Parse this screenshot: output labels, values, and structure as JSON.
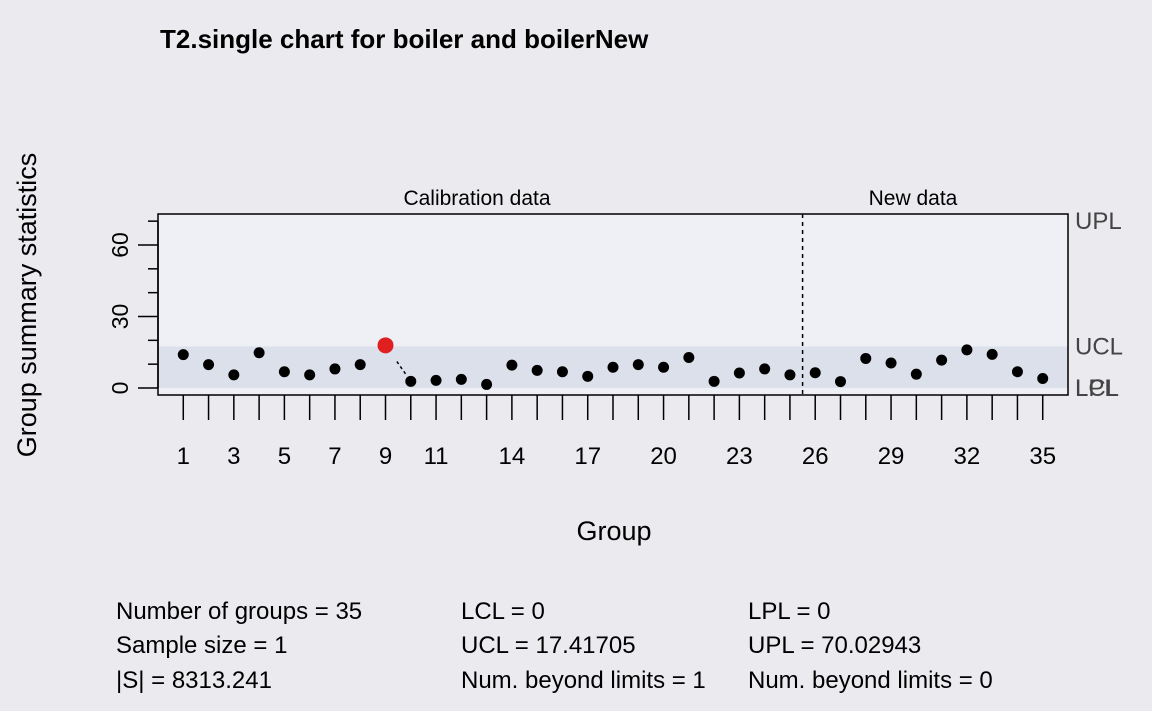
{
  "chart_data": {
    "type": "scatter",
    "title": "T2.single chart for boiler and boilerNew",
    "xlabel": "Group",
    "ylabel": "Group summary statistics",
    "section_labels": [
      "Calibration data",
      "New data"
    ],
    "calibration_groups": 25,
    "x": [
      1,
      2,
      3,
      4,
      5,
      6,
      7,
      8,
      9,
      10,
      11,
      12,
      13,
      14,
      15,
      16,
      17,
      18,
      19,
      20,
      21,
      22,
      23,
      24,
      25,
      26,
      27,
      28,
      29,
      30,
      31,
      32,
      33,
      34,
      35
    ],
    "values": [
      14.0,
      9.8,
      5.5,
      14.8,
      6.8,
      5.5,
      8.0,
      9.8,
      17.9,
      2.8,
      3.2,
      3.6,
      1.5,
      9.6,
      7.4,
      6.8,
      4.9,
      8.7,
      9.8,
      8.7,
      12.8,
      2.8,
      6.3,
      8.0,
      5.5,
      6.4,
      2.7,
      12.4,
      10.5,
      5.8,
      11.7,
      16.0,
      14.1,
      6.8,
      4.0
    ],
    "violations": [
      9
    ],
    "ylim": [
      0,
      73
    ],
    "y_ticks": [
      0,
      30,
      60
    ],
    "x_tick_labels": [
      1,
      3,
      5,
      7,
      9,
      11,
      14,
      17,
      20,
      23,
      26,
      29,
      32,
      35
    ],
    "limits": [
      {
        "name": "UPL",
        "value": 70.02943
      },
      {
        "name": "UCL",
        "value": 17.41705
      },
      {
        "name": "LPL",
        "value": 0
      },
      {
        "name": "LCL",
        "value": 0
      }
    ],
    "colors": {
      "background": "#ebebef",
      "plot_area": "#eef0f5",
      "control_band": "#dbe0ea",
      "point": "#000000",
      "violation": "#e02020",
      "limit_label": "#444444"
    }
  },
  "stats": {
    "col1": [
      "Number of groups = 35",
      "Sample size = 1",
      "|S| = 8313.241"
    ],
    "col2": [
      "LCL = 0",
      "UCL = 17.41705",
      "Num. beyond limits = 1"
    ],
    "col3": [
      "LPL = 0",
      "UPL = 70.02943",
      "Num. beyond limits = 0"
    ]
  }
}
